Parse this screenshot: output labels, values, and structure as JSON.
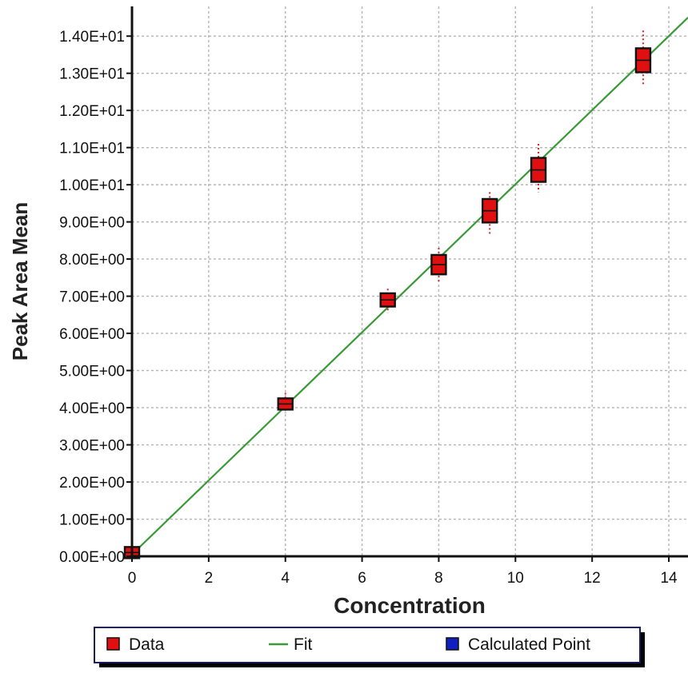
{
  "chart_data": {
    "type": "scatter",
    "title": "",
    "xlabel": "Concentration",
    "ylabel": "Peak Area Mean",
    "xlim": [
      0,
      14.5
    ],
    "ylim": [
      0,
      14.8
    ],
    "x_ticks": [
      0,
      2,
      4,
      6,
      8,
      10,
      12,
      14
    ],
    "x_tick_labels": [
      "0",
      "2",
      "4",
      "6",
      "8",
      "10",
      "12",
      "14"
    ],
    "y_ticks": [
      0,
      1,
      2,
      3,
      4,
      5,
      6,
      7,
      8,
      9,
      10,
      11,
      12,
      13,
      14
    ],
    "y_tick_labels": [
      "0.00E+00",
      "1.00E+00",
      "2.00E+00",
      "3.00E+00",
      "4.00E+00",
      "5.00E+00",
      "6.00E+00",
      "7.00E+00",
      "8.00E+00",
      "9.00E+00",
      "1.00E+01",
      "1.10E+01",
      "1.20E+01",
      "1.30E+01",
      "1.40E+01"
    ],
    "grid": true,
    "legend_position": "bottom",
    "series": [
      {
        "name": "Data",
        "color": "#e01010",
        "points": [
          {
            "x": 0,
            "y": 0.1,
            "low": 0.0,
            "high": 0.25
          },
          {
            "x": 4,
            "y": 4.1,
            "low": 3.85,
            "high": 4.4
          },
          {
            "x": 6.67,
            "y": 6.9,
            "low": 6.55,
            "high": 7.2
          },
          {
            "x": 8,
            "y": 7.85,
            "low": 7.35,
            "high": 8.3
          },
          {
            "x": 9.33,
            "y": 9.3,
            "low": 8.65,
            "high": 9.8
          },
          {
            "x": 10.6,
            "y": 10.4,
            "low": 9.8,
            "high": 11.1
          },
          {
            "x": 13.33,
            "y": 13.35,
            "low": 12.65,
            "high": 14.15
          }
        ]
      },
      {
        "name": "Fit",
        "color": "#3a9a3a",
        "line": [
          [
            0,
            0.05
          ],
          [
            14.5,
            14.5
          ]
        ]
      },
      {
        "name": "Calculated Point",
        "color": "#1020c0",
        "points": []
      }
    ]
  },
  "legend": {
    "items": [
      {
        "label": "Data",
        "color": "#e01010",
        "kind": "square"
      },
      {
        "label": "Fit",
        "color": "#3a9a3a",
        "kind": "line"
      },
      {
        "label": "Calculated Point",
        "color": "#1020c0",
        "kind": "square"
      }
    ]
  }
}
